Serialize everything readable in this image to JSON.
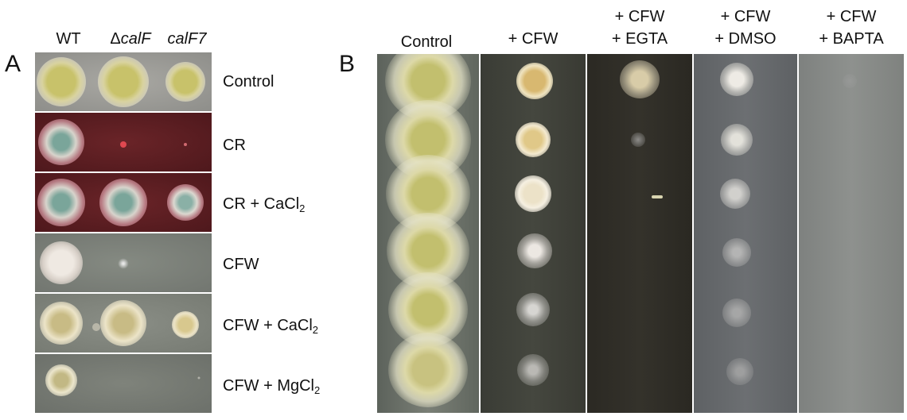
{
  "panel_a": {
    "letter": "A",
    "strain_headers": [
      {
        "prefix": "",
        "italic": "WT"
      },
      {
        "prefix": "Δ",
        "italic": "calF"
      },
      {
        "prefix": "",
        "italic": "calF7"
      }
    ],
    "rows": [
      {
        "label": "Control",
        "sub": "",
        "suffix": ""
      },
      {
        "label": "CR",
        "sub": "",
        "suffix": ""
      },
      {
        "label": "CR + CaCl",
        "sub": "2",
        "suffix": ""
      },
      {
        "label": "CFW",
        "sub": "",
        "suffix": ""
      },
      {
        "label": "CFW + CaCl",
        "sub": "2",
        "suffix": ""
      },
      {
        "label": "CFW + MgCl",
        "sub": "2",
        "suffix": ""
      }
    ]
  },
  "panel_b": {
    "letter": "B",
    "columns": [
      {
        "line1": "",
        "line2": "Control"
      },
      {
        "line1": "",
        "line2": "+ CFW"
      },
      {
        "line1": "+ CFW",
        "line2": "+ EGTA"
      },
      {
        "line1": "+ CFW",
        "line2": "+ DMSO"
      },
      {
        "line1": "+ CFW",
        "line2": "+ BAPTA"
      }
    ]
  },
  "colors": {
    "control_plate": "#9a9a96",
    "cr_plate": "#5e1e22",
    "cfw_plate": "#7f857d",
    "b_control_plate": "#6a7068",
    "b_cfw_plate": "#3c3e36",
    "b_egta_plate": "#2e2c26",
    "b_dmso_plate": "#65686b",
    "b_bapta_plate": "#8a8c8a",
    "colony_yellow": "#c9c46a",
    "colony_cream": "#f2ecd0"
  }
}
